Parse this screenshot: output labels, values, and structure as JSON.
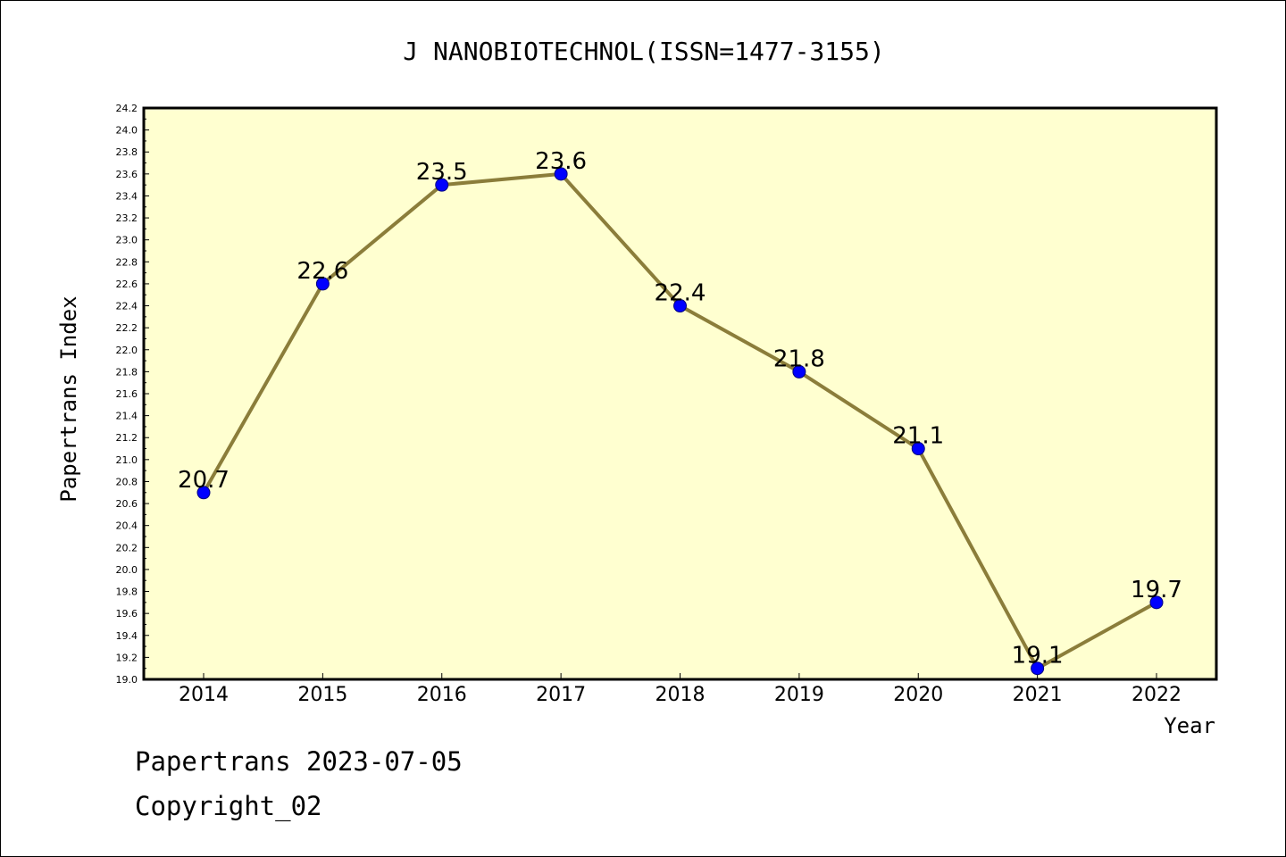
{
  "chart_data": {
    "type": "line",
    "title": "J NANOBIOTECHNOL(ISSN=1477-3155)",
    "xlabel": "Year",
    "ylabel": "Papertrans Index",
    "categories": [
      "2014",
      "2015",
      "2016",
      "2017",
      "2018",
      "2019",
      "2020",
      "2021",
      "2022"
    ],
    "series": [
      {
        "values": [
          20.7,
          22.6,
          23.5,
          23.6,
          22.4,
          21.8,
          21.1,
          19.1,
          19.7
        ],
        "labels": [
          "20.7",
          "22.6",
          "23.5",
          "23.6",
          "22.4",
          "21.8",
          "21.1",
          "19.1",
          "19.7"
        ]
      }
    ],
    "ylim": [
      19.0,
      24.2
    ],
    "ytick_step": 0.2,
    "yticks": [
      "19.0",
      "19.2",
      "19.4",
      "19.6",
      "19.8",
      "20.0",
      "20.2",
      "20.4",
      "20.6",
      "20.8",
      "21.0",
      "21.2",
      "21.4",
      "21.6",
      "21.8",
      "22.0",
      "22.2",
      "22.4",
      "22.6",
      "22.8",
      "23.0",
      "23.2",
      "23.4",
      "23.6",
      "23.8",
      "24.0",
      "24.2"
    ],
    "grid": false,
    "legend": "none",
    "colors": {
      "plot_background": "#ffffd0",
      "line": "#8b7d3a",
      "marker_fill": "#0000ff",
      "marker_stroke": "#000080"
    }
  },
  "footer": {
    "line1": "Papertrans 2023-07-05",
    "line2": "Copyright_02"
  }
}
